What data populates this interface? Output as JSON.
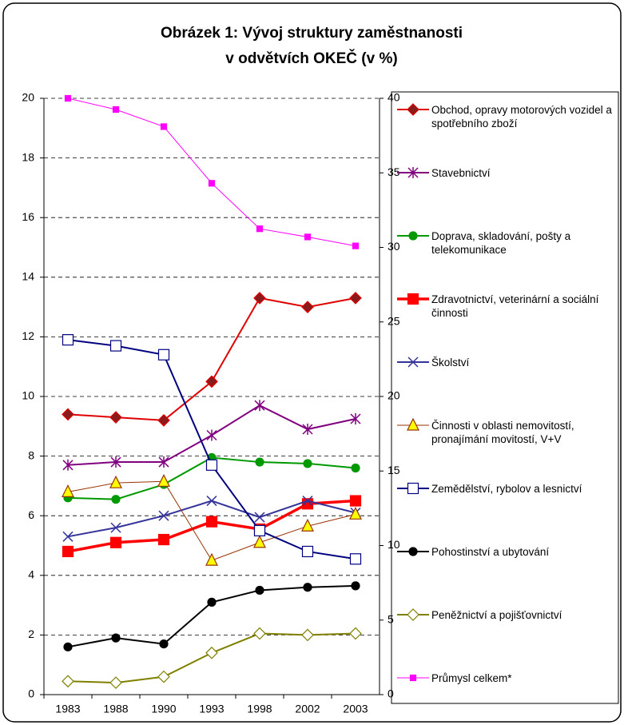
{
  "chart_data": {
    "type": "line",
    "title_lines": [
      "Obrázek 1: Vývoj struktury zaměstnanosti",
      "v odvětvích OKEČ (v %)"
    ],
    "categories": [
      "1983",
      "1988",
      "1990",
      "1993",
      "1998",
      "2002",
      "2003"
    ],
    "ylim": [
      0,
      20
    ],
    "yticks": [
      0,
      2,
      4,
      6,
      8,
      10,
      12,
      14,
      16,
      18,
      20
    ],
    "y2lim": [
      0,
      40
    ],
    "y2ticks": [
      0,
      5,
      10,
      15,
      20,
      25,
      30,
      35,
      40
    ],
    "grid": true,
    "series": [
      {
        "name": "Obchod, opravy motorových vozidel a spotřebního zboží",
        "color": "#e00000",
        "marker_color": "#8b1a1a",
        "marker": "diamond",
        "line_width": 2,
        "values": [
          9.4,
          9.3,
          9.2,
          10.5,
          13.3,
          13.0,
          13.3
        ]
      },
      {
        "name": "Stavebnictví",
        "color": "#800080",
        "marker_color": "#800080",
        "marker": "star",
        "line_width": 2,
        "values": [
          7.7,
          7.8,
          7.8,
          8.7,
          9.7,
          8.9,
          9.25
        ]
      },
      {
        "name": "Doprava, skladování, pošty a telekomunikace",
        "color": "#009900",
        "marker_color": "#009900",
        "marker": "circle",
        "line_width": 2,
        "values": [
          6.6,
          6.55,
          7.05,
          7.95,
          7.8,
          7.75,
          7.6
        ]
      },
      {
        "name": "Zdravotnictví, veterinární a sociální činnosti",
        "color": "#ff0000",
        "marker_color": "#ff0000",
        "marker": "square",
        "line_width": 3.5,
        "values": [
          4.8,
          5.1,
          5.2,
          5.8,
          5.55,
          6.4,
          6.5
        ]
      },
      {
        "name": "Školství",
        "color": "#333399",
        "marker_color": "#333399",
        "marker": "x",
        "line_width": 2,
        "values": [
          5.3,
          5.6,
          6.0,
          6.5,
          5.95,
          6.5,
          6.1
        ]
      },
      {
        "name": "Činnosti v oblasti nemovitostí, pronajímání movitostí, V+V",
        "color": "#993300",
        "marker_color": "#ffff00",
        "marker": "triangle",
        "line_width": 1,
        "values": [
          6.8,
          7.1,
          7.15,
          4.5,
          5.1,
          5.65,
          6.05
        ]
      },
      {
        "name": "Zemědělství, rybolov a lesnictví",
        "color": "#000080",
        "marker_color": "#ffffff",
        "marker": "square",
        "line_width": 2,
        "values": [
          11.9,
          11.7,
          11.4,
          7.7,
          5.5,
          4.8,
          4.55
        ]
      },
      {
        "name": "Pohostinství a ubytování",
        "color": "#000000",
        "marker_color": "#000000",
        "marker": "circle",
        "line_width": 2,
        "values": [
          1.6,
          1.9,
          1.7,
          3.1,
          3.5,
          3.6,
          3.65
        ]
      },
      {
        "name": "Peněžnictví a pojišťovnictví",
        "color": "#808000",
        "marker_color": "#ffffff",
        "marker": "diamond",
        "line_width": 2,
        "values": [
          0.45,
          0.4,
          0.6,
          1.4,
          2.05,
          2.0,
          2.05
        ]
      },
      {
        "name": "Průmysl celkem*",
        "color": "#ff00ff",
        "marker_color": "#ff00ff",
        "marker": "smallsquare",
        "line_width": 1,
        "axis": "y2",
        "values": [
          40.0,
          39.25,
          38.1,
          34.3,
          31.25,
          30.7,
          30.1
        ]
      }
    ]
  }
}
